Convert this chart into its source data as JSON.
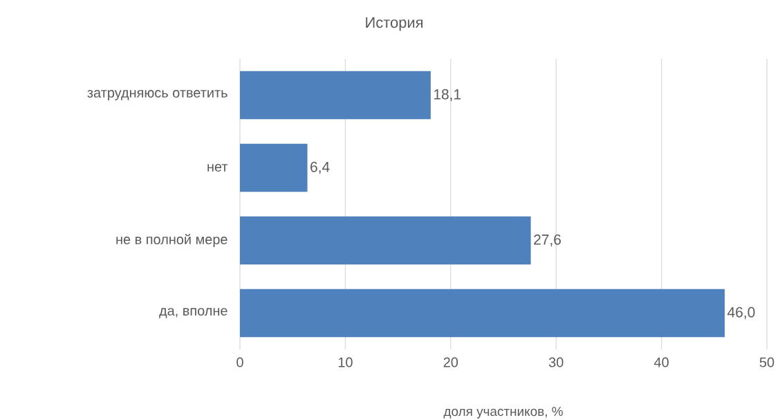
{
  "chart_data": {
    "type": "bar",
    "orientation": "horizontal",
    "title": "История",
    "xlabel": "доля участников, %",
    "categories": [
      "затрудняюсь ответить",
      "нет",
      "не в полной мере",
      "да, вполне"
    ],
    "values": [
      18.1,
      6.4,
      27.6,
      46.0
    ],
    "value_labels": [
      "18,1",
      "6,4",
      "27,6",
      "46,0"
    ],
    "color": "#4f81bd",
    "xlim": [
      0,
      50
    ],
    "xticks": [
      0,
      10,
      20,
      30,
      40,
      50
    ],
    "grid": "x"
  }
}
